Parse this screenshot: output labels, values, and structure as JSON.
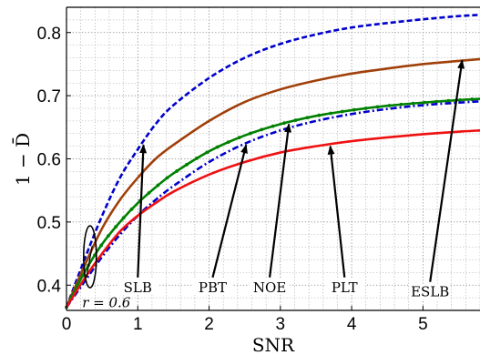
{
  "chart_data": {
    "type": "line",
    "xlabel": "SNR",
    "ylabel": "1 − D̄",
    "xlim": [
      0,
      5.8
    ],
    "ylim": [
      0.36,
      0.84
    ],
    "xticks": [
      "0",
      "1",
      "2",
      "3",
      "4",
      "5"
    ],
    "yticks": [
      "0.4",
      "0.5",
      "0.6",
      "0.7",
      "0.8"
    ],
    "grid": true,
    "series": [
      {
        "key": "SLB",
        "color": "#0000cc",
        "style": "dashed",
        "x": [
          0,
          0.25,
          0.5,
          0.75,
          1.0,
          1.25,
          1.5,
          2.0,
          2.5,
          3.0,
          3.5,
          4.0,
          4.5,
          5.0,
          5.5,
          5.8
        ],
        "y": [
          0.365,
          0.44,
          0.51,
          0.57,
          0.615,
          0.655,
          0.685,
          0.728,
          0.76,
          0.782,
          0.797,
          0.808,
          0.815,
          0.821,
          0.826,
          0.828
        ]
      },
      {
        "key": "ESLB",
        "color": "#a0400a",
        "style": "solid",
        "x": [
          0,
          0.25,
          0.5,
          0.75,
          1.0,
          1.25,
          1.5,
          2.0,
          2.5,
          3.0,
          3.5,
          4.0,
          4.5,
          5.0,
          5.5,
          5.8
        ],
        "y": [
          0.365,
          0.43,
          0.49,
          0.535,
          0.57,
          0.6,
          0.622,
          0.66,
          0.69,
          0.71,
          0.724,
          0.735,
          0.743,
          0.75,
          0.755,
          0.758
        ]
      },
      {
        "key": "PBT",
        "color": "#008000",
        "style": "solid-marker",
        "x": [
          0,
          0.25,
          0.5,
          0.75,
          1.0,
          1.25,
          1.5,
          2.0,
          2.5,
          3.0,
          3.5,
          4.0,
          4.5,
          5.0,
          5.5,
          5.8
        ],
        "y": [
          0.365,
          0.42,
          0.465,
          0.5,
          0.53,
          0.555,
          0.577,
          0.612,
          0.637,
          0.655,
          0.668,
          0.677,
          0.684,
          0.689,
          0.693,
          0.695
        ]
      },
      {
        "key": "NOE",
        "color": "#0000cc",
        "style": "dash-dot",
        "x": [
          0,
          0.25,
          0.5,
          0.75,
          1.0,
          1.25,
          1.5,
          2.0,
          2.5,
          3.0,
          3.5,
          4.0,
          4.5,
          5.0,
          5.5,
          5.8
        ],
        "y": [
          0.365,
          0.405,
          0.445,
          0.48,
          0.51,
          0.535,
          0.557,
          0.595,
          0.624,
          0.645,
          0.66,
          0.671,
          0.679,
          0.685,
          0.689,
          0.691
        ]
      },
      {
        "key": "PLT",
        "color": "#ee1111",
        "style": "solid",
        "x": [
          0,
          0.25,
          0.5,
          0.75,
          1.0,
          1.25,
          1.5,
          2.0,
          2.5,
          3.0,
          3.5,
          4.0,
          4.5,
          5.0,
          5.5,
          5.8
        ],
        "y": [
          0.365,
          0.41,
          0.45,
          0.485,
          0.51,
          0.53,
          0.548,
          0.575,
          0.595,
          0.61,
          0.62,
          0.628,
          0.634,
          0.639,
          0.643,
          0.645
        ]
      }
    ],
    "annotations": [
      {
        "text": "SLB",
        "label_x": 1.0,
        "label_y": 0.392,
        "arrow_to_x": 1.08,
        "arrow_to_y": 0.622
      },
      {
        "text": "PBT",
        "label_x": 2.05,
        "label_y": 0.392,
        "arrow_to_x": 2.52,
        "arrow_to_y": 0.622
      },
      {
        "text": "NOE",
        "label_x": 2.85,
        "label_y": 0.392,
        "arrow_to_x": 3.12,
        "arrow_to_y": 0.655
      },
      {
        "text": "PLT",
        "label_x": 3.9,
        "label_y": 0.392,
        "arrow_to_x": 3.7,
        "arrow_to_y": 0.62
      },
      {
        "text": "ESLB",
        "label_x": 5.1,
        "label_y": 0.385,
        "arrow_to_x": 5.55,
        "arrow_to_y": 0.756
      }
    ],
    "r_label": "r = 0.6"
  }
}
